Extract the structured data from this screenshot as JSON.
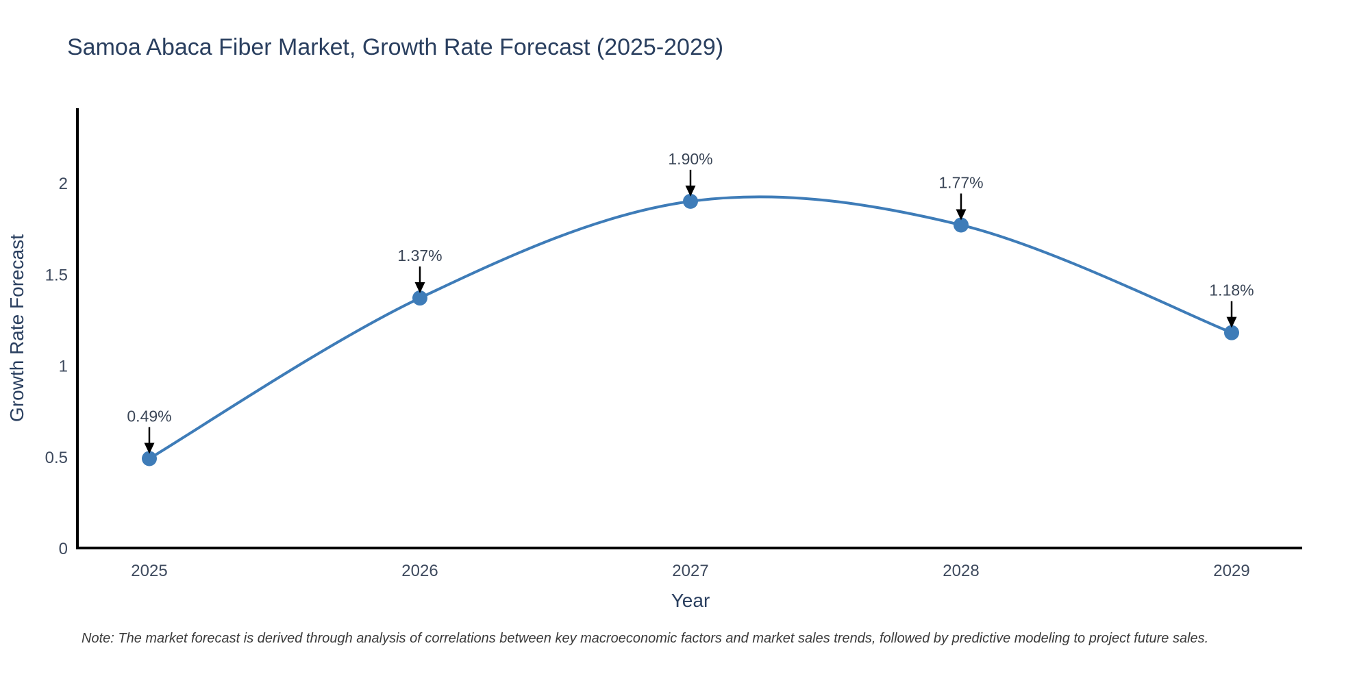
{
  "page": {
    "background": "#ffffff"
  },
  "chart_data": {
    "type": "line",
    "title": "Samoa Abaca Fiber Market, Growth Rate Forecast (2025-2029)",
    "xlabel": "Year",
    "ylabel": "Growth Rate Forecast",
    "categories": [
      "2025",
      "2026",
      "2027",
      "2028",
      "2029"
    ],
    "values": [
      0.49,
      1.37,
      1.9,
      1.77,
      1.18
    ],
    "point_labels": [
      "0.49%",
      "1.37%",
      "1.90%",
      "1.77%",
      "1.18%"
    ],
    "yticks": [
      0,
      0.5,
      1,
      1.5,
      2
    ],
    "ytick_labels": [
      "0",
      "0.5",
      "1",
      "1.5",
      "2"
    ],
    "ylim": [
      0,
      2.41
    ],
    "grid": false,
    "legend_position": "none",
    "smooth": true,
    "line_color": "#3e7cb8",
    "marker_color": "#3e7cb8",
    "arrow_color": "#000000",
    "axis_color": "#000000"
  },
  "note": {
    "text": "Note: The market forecast is derived through analysis of correlations between key macroeconomic factors and market sales trends, followed by predictive modeling to project future sales."
  }
}
